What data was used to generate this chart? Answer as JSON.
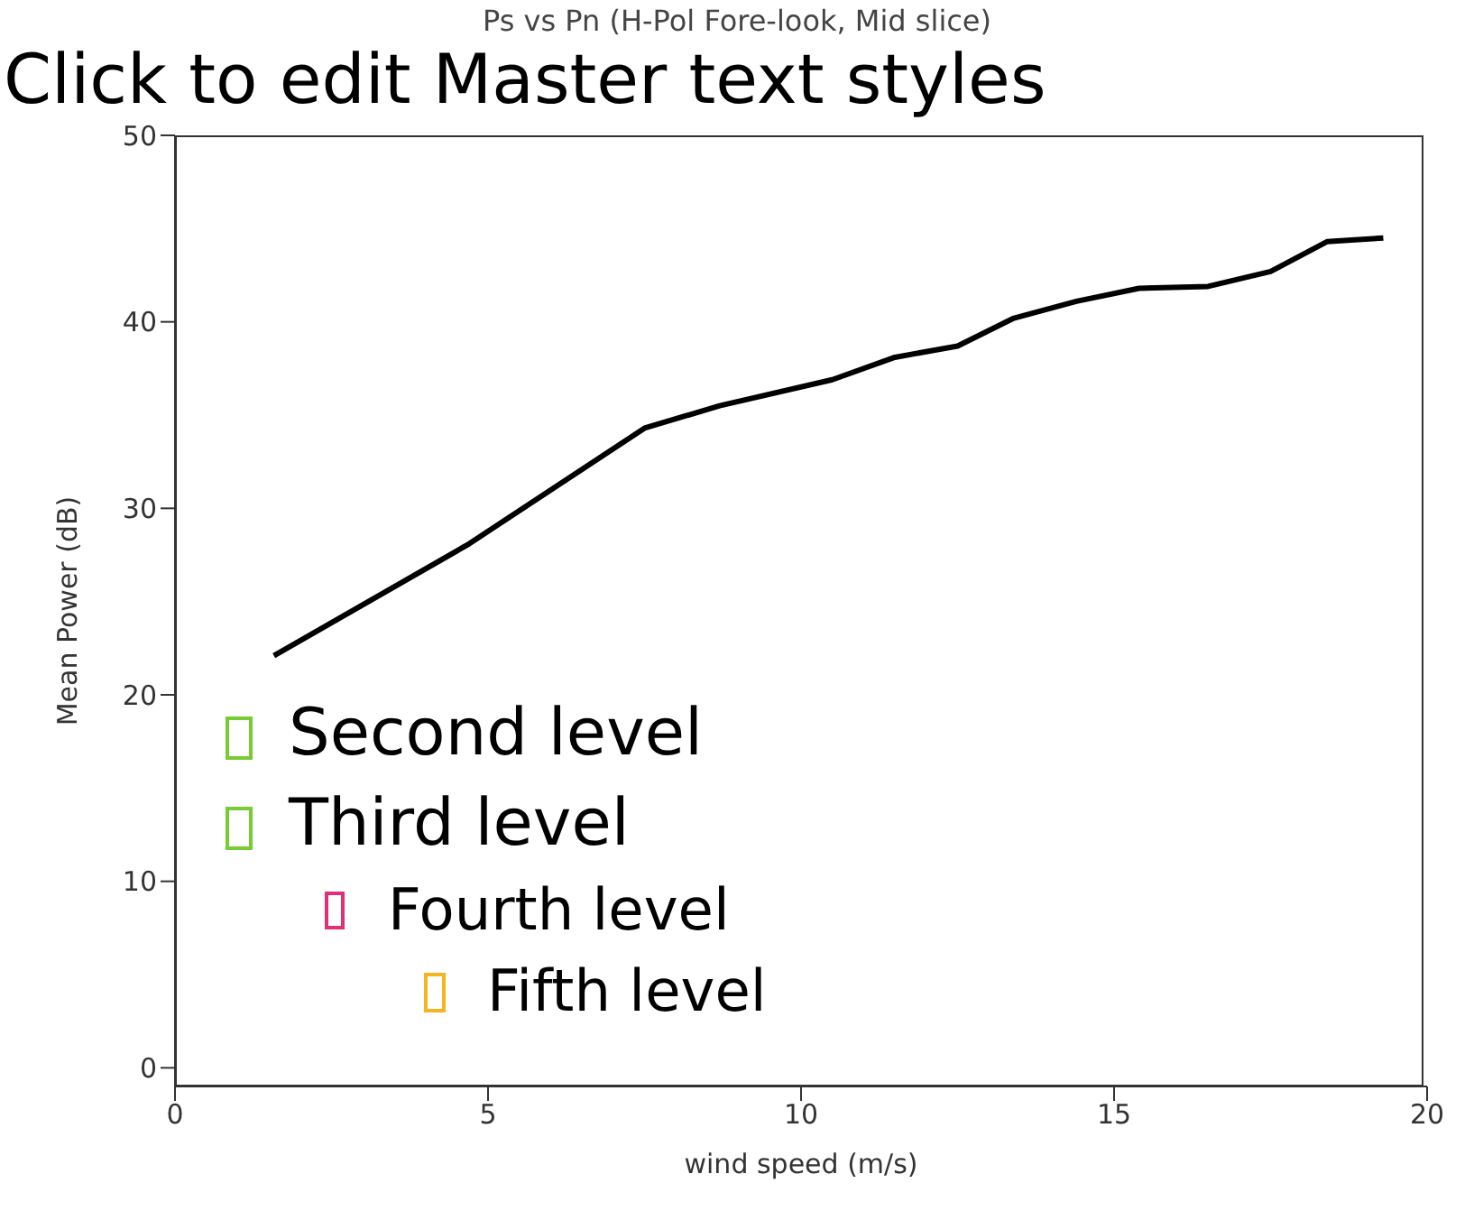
{
  "chart_data": {
    "type": "line",
    "title": "Ps vs Pn (H-Pol Fore-look, Mid slice)",
    "xlabel": "wind speed (m/s)",
    "ylabel": "Mean Power (dB)",
    "x": [
      1.58,
      4.7,
      7.5,
      8.7,
      10.5,
      11.5,
      12.5,
      13.4,
      14.4,
      15.4,
      16.5,
      17.5,
      18.4,
      19.3
    ],
    "series": [
      {
        "color": "#000000",
        "values": [
          22.1,
          28.1,
          34.3,
          35.5,
          36.9,
          38.1,
          38.7,
          40.2,
          41.1,
          41.8,
          41.9,
          42.7,
          44.3,
          44.5
        ]
      }
    ],
    "xlim": [
      0,
      20
    ],
    "xticks": [
      0,
      5,
      10,
      15,
      20
    ],
    "ylim": [
      -1,
      50
    ],
    "yticks": [
      0,
      10,
      20,
      30,
      40,
      50
    ],
    "grid": false,
    "legend": false,
    "marker": "none",
    "line_style": "solid",
    "annotations": [
      "Click to edit Master text styles",
      "Second level",
      "Third level",
      "Fourth level",
      "Fifth level"
    ]
  }
}
